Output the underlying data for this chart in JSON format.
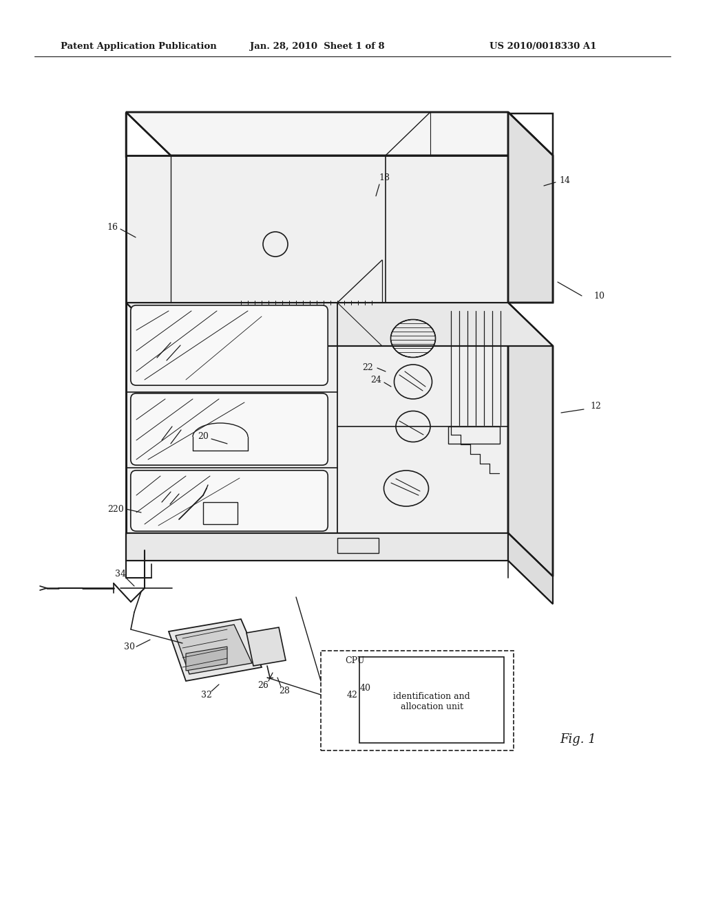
{
  "bg_color": "#ffffff",
  "line_color": "#1a1a1a",
  "header_text": "Patent Application Publication",
  "header_date": "Jan. 28, 2010  Sheet 1 of 8",
  "header_patent": "US 2010/0018330 A1",
  "fig_label": "Fig. 1",
  "dpi": 100,
  "figw": 10.24,
  "figh": 13.2
}
